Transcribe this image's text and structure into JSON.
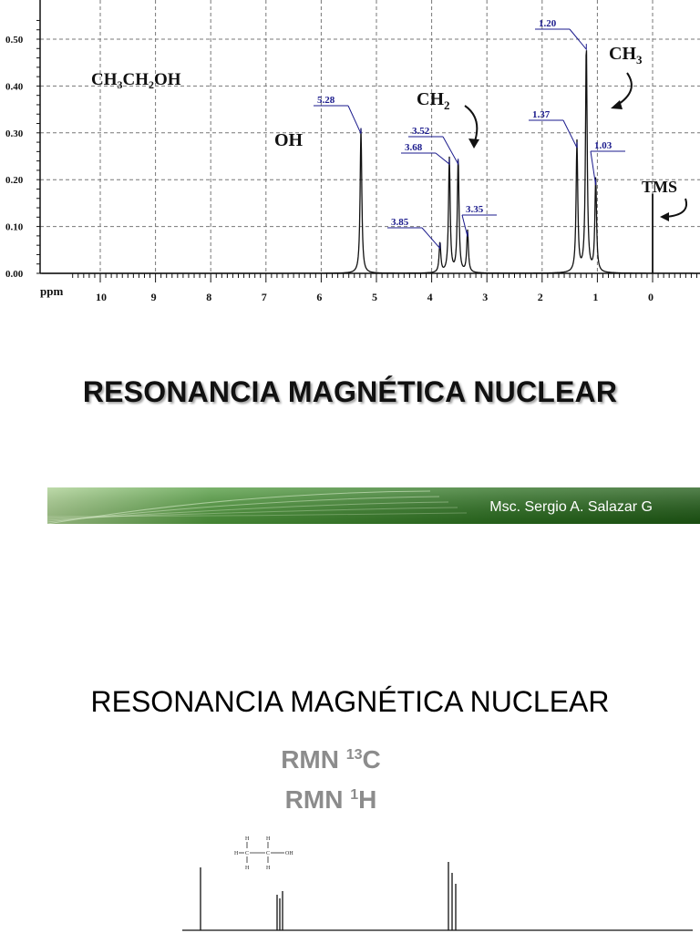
{
  "slide1": {
    "chart_data": {
      "type": "line",
      "title": "",
      "compound": "CH3CH2OH",
      "xlabel": "ppm",
      "x_ticks": [
        "10",
        "9",
        "8",
        "7",
        "6",
        "5",
        "4",
        "3",
        "2",
        "1",
        "0"
      ],
      "x_range": [
        10.5,
        -0.8
      ],
      "y_ticks": [
        "0.00",
        "0.10",
        "0.20",
        "0.30",
        "0.40",
        "0.50"
      ],
      "y_range": [
        0,
        0.55
      ],
      "grid": true,
      "peaks": [
        {
          "ppm": 5.28,
          "height": 0.31
        },
        {
          "ppm": 3.85,
          "height": 0.065
        },
        {
          "ppm": 3.68,
          "height": 0.245
        },
        {
          "ppm": 3.52,
          "height": 0.245
        },
        {
          "ppm": 3.35,
          "height": 0.09
        },
        {
          "ppm": 1.37,
          "height": 0.28
        },
        {
          "ppm": 1.2,
          "height": 0.49
        },
        {
          "ppm": 1.03,
          "height": 0.2
        },
        {
          "ppm": 0.0,
          "height": 0.17
        }
      ],
      "peak_labels": [
        "5.28",
        "3.85",
        "3.68",
        "3.52",
        "3.35",
        "1.37",
        "1.20",
        "1.03"
      ],
      "annotations": {
        "oh": "OH",
        "ch2": "CH",
        "ch2_sub": "2",
        "ch3": "CH",
        "ch3_sub": "3",
        "tms": "TMS"
      }
    },
    "title": "RESONANCIA MAGNÉTICA NUCLEAR",
    "author": "Msc. Sergio A. Salazar G",
    "colors": {
      "banner_dark": "#1e5a14",
      "banner_light": "#4f9a3c",
      "label_blue": "#1a1a8c"
    }
  },
  "slide2": {
    "title": "RESONANCIA MAGNÉTICA NUCLEAR",
    "rmn13c": {
      "prefix": "RMN ",
      "sup": "13",
      "suffix": "C"
    },
    "rmn1h": {
      "prefix": "RMN ",
      "sup": "1",
      "suffix": "H"
    },
    "structure_atoms": {
      "h": "H",
      "c": "C",
      "oh": "OH"
    }
  }
}
